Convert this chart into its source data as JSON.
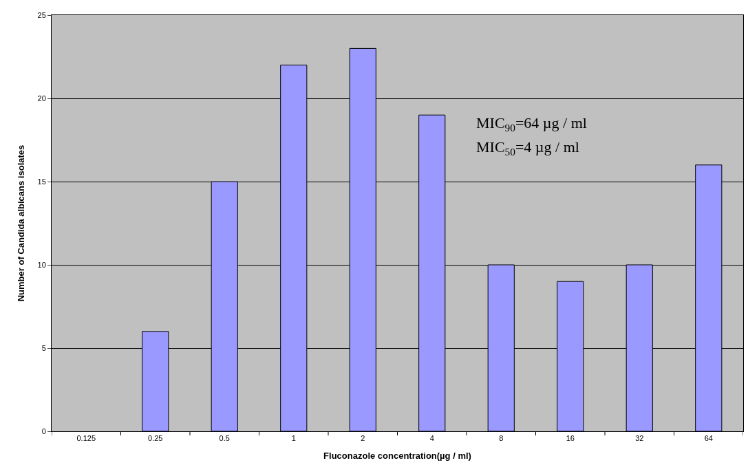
{
  "chart_data": {
    "type": "bar",
    "xlabel": "Fluconazole concentration(µg / ml)",
    "ylabel": "Number of Candida albicans isolates",
    "categories": [
      "0.125",
      "0.25",
      "0.5",
      "1",
      "2",
      "4",
      "8",
      "16",
      "32",
      "64"
    ],
    "values": [
      0,
      6,
      15,
      22,
      23,
      19,
      10,
      9,
      10,
      16
    ],
    "color": "#9999ff",
    "ylim": [
      0,
      25
    ],
    "yticks": [
      0,
      5,
      10,
      15,
      20,
      25
    ],
    "grid": "y",
    "legend": false,
    "annotations": [
      "MIC$_{90}$=64 µg / ml",
      "MIC$_{50}$=4 µg / ml"
    ]
  }
}
